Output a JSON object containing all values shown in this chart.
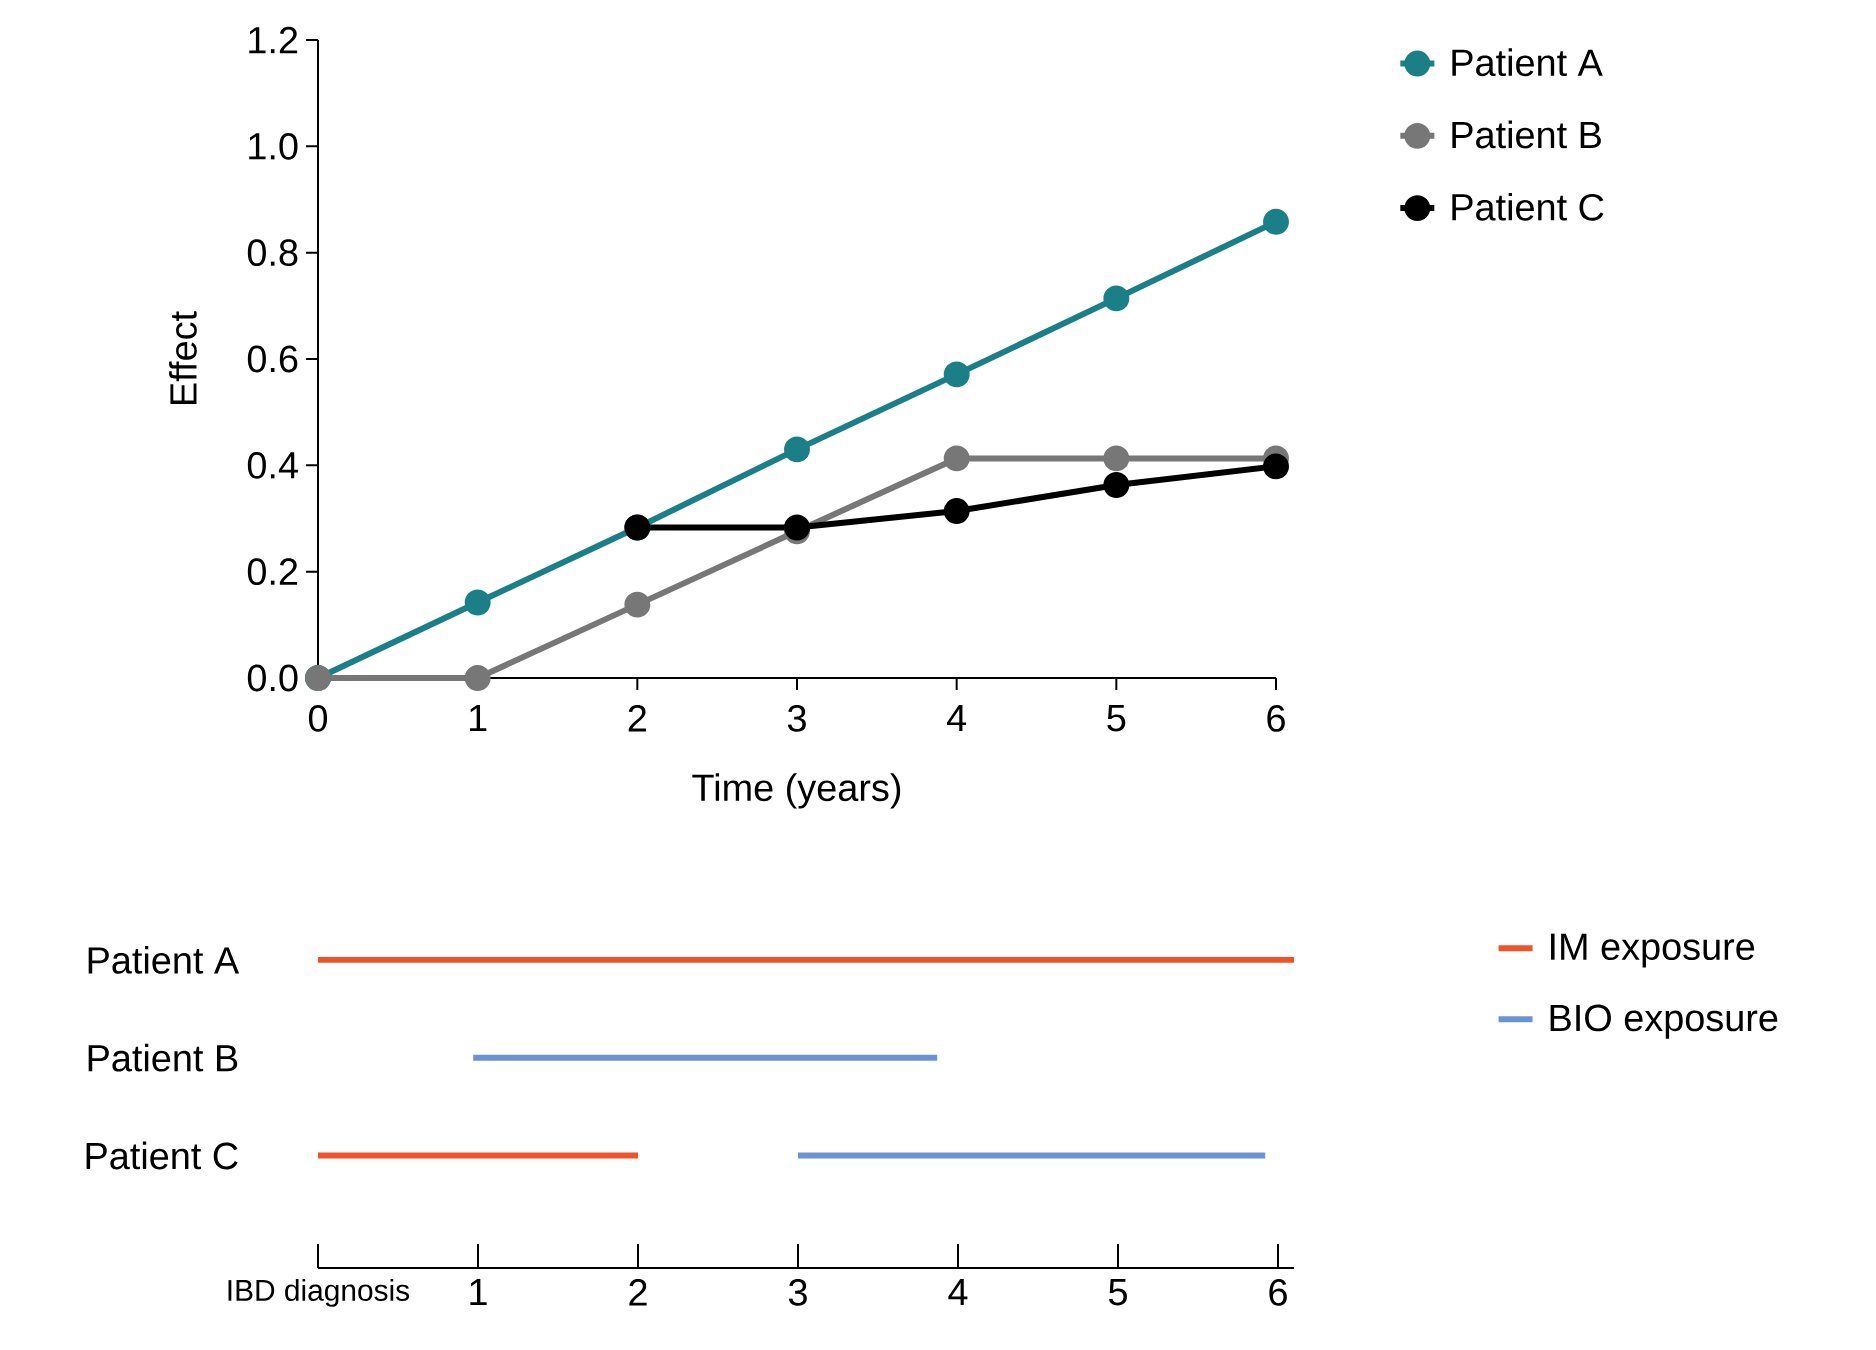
{
  "chart_data": [
    {
      "type": "line",
      "xlabel": "Time (years)",
      "ylabel": "Effect",
      "x": [
        0,
        1,
        2,
        3,
        4,
        5,
        6
      ],
      "series": [
        {
          "name": "Patient A",
          "color": "#1a7f86",
          "values": [
            0,
            0.142,
            0.283,
            0.43,
            0.571,
            0.714,
            0.858
          ]
        },
        {
          "name": "Patient B",
          "color": "#777777",
          "values": [
            0,
            0,
            0.138,
            0.276,
            0.413,
            0.413,
            0.413
          ]
        },
        {
          "name": "Patient C",
          "color": "#000000",
          "values": [
            null,
            null,
            0.283,
            0.283,
            0.314,
            0.363,
            0.398
          ]
        }
      ],
      "xlim": [
        0,
        6
      ],
      "ylim": [
        0,
        1.2
      ],
      "xticks": [
        0,
        1,
        2,
        3,
        4,
        5,
        6
      ],
      "yticks": [
        {
          "value": 0,
          "label": "0.0"
        },
        0.2,
        0.4,
        0.6,
        0.8,
        {
          "value": 1,
          "label": "1.0"
        },
        1.2
      ],
      "marker": "circle",
      "legend": "right"
    },
    {
      "type": "bar",
      "orientation": "horizontal",
      "categories": [
        "Patient A",
        "Patient B",
        "Patient C"
      ],
      "series": [
        {
          "name": "IM exposure",
          "color": "#f0522a",
          "base": [
            0,
            null,
            0
          ],
          "values": [
            6.1,
            null,
            2
          ]
        },
        {
          "name": "BIO exposure",
          "color": "#6a93d4",
          "base": [
            null,
            0.97,
            3
          ],
          "values": [
            null,
            2.9,
            2.92
          ]
        }
      ],
      "xlim": [
        0,
        6.1
      ],
      "xticks": [
        {
          "value": 0,
          "label": "IBD diagnosis"
        },
        1,
        2,
        3,
        4,
        5,
        6
      ],
      "legend": "right"
    }
  ]
}
